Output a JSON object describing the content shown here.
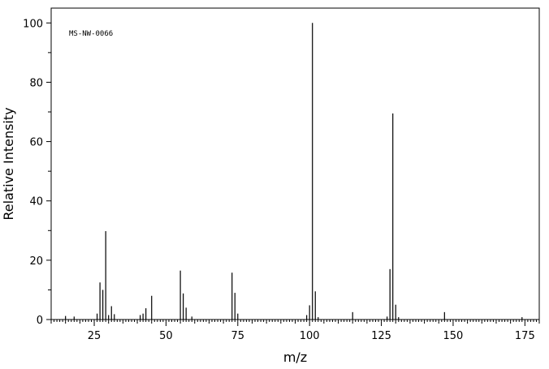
{
  "chart_data": {
    "type": "bar",
    "title": "",
    "annotation": "MS-NW-0066",
    "xlabel": "m/z",
    "ylabel": "Relative Intensity",
    "xlim": [
      10,
      180
    ],
    "ylim": [
      0,
      105
    ],
    "xticks": [
      25,
      50,
      75,
      100,
      125,
      150,
      175
    ],
    "yticks": [
      0,
      20,
      40,
      60,
      80,
      100
    ],
    "grid": false,
    "peaks": [
      {
        "x": 15,
        "y": 1.2
      },
      {
        "x": 18,
        "y": 1.0
      },
      {
        "x": 26,
        "y": 2.0
      },
      {
        "x": 27,
        "y": 12.5
      },
      {
        "x": 28,
        "y": 10.0
      },
      {
        "x": 29,
        "y": 29.8
      },
      {
        "x": 30,
        "y": 1.5
      },
      {
        "x": 31,
        "y": 4.5
      },
      {
        "x": 32,
        "y": 1.8
      },
      {
        "x": 41,
        "y": 1.5
      },
      {
        "x": 42,
        "y": 2.0
      },
      {
        "x": 43,
        "y": 3.8
      },
      {
        "x": 45,
        "y": 8.0
      },
      {
        "x": 55,
        "y": 16.5
      },
      {
        "x": 56,
        "y": 8.8
      },
      {
        "x": 57,
        "y": 4.0
      },
      {
        "x": 59,
        "y": 1.0
      },
      {
        "x": 73,
        "y": 15.8
      },
      {
        "x": 74,
        "y": 9.0
      },
      {
        "x": 75,
        "y": 2.0
      },
      {
        "x": 99,
        "y": 1.5
      },
      {
        "x": 100,
        "y": 4.8
      },
      {
        "x": 101,
        "y": 100
      },
      {
        "x": 102,
        "y": 9.5
      },
      {
        "x": 103,
        "y": 0.8
      },
      {
        "x": 115,
        "y": 2.5
      },
      {
        "x": 127,
        "y": 1.0
      },
      {
        "x": 128,
        "y": 17.0
      },
      {
        "x": 129,
        "y": 69.5
      },
      {
        "x": 130,
        "y": 5.0
      },
      {
        "x": 131,
        "y": 0.8
      },
      {
        "x": 147,
        "y": 2.5
      },
      {
        "x": 174,
        "y": 0.8
      }
    ]
  }
}
